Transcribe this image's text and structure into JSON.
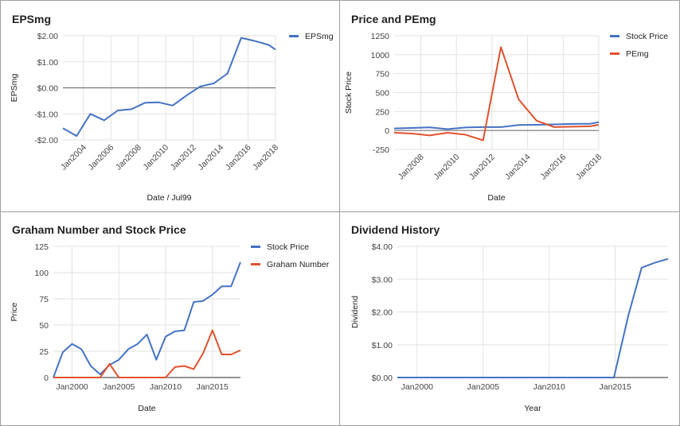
{
  "chart_data": [
    {
      "type": "line",
      "title": "EPSmg",
      "xlabel": "Date / Jul99",
      "ylabel": "EPSmg",
      "x_ticks": [
        "Jan2004",
        "Jan2006",
        "Jan2008",
        "Jan2010",
        "Jan2012",
        "Jan2014",
        "Jan2016",
        "Jan2018"
      ],
      "y_ticks": [
        "$2.00",
        "$1.00",
        "$0.00",
        "-$1.00",
        "-$2.00"
      ],
      "ylim": [
        -2,
        2
      ],
      "xlim": [
        2002.5,
        2018
      ],
      "grid": true,
      "legend_position": "right",
      "colors": {
        "EPSmg": "#4472c4",
        "baseline": "#777777"
      },
      "series": [
        {
          "name": "EPSmg",
          "x": [
            2002.5,
            2003.5,
            2004.5,
            2005.5,
            2006.5,
            2007.5,
            2008.5,
            2009.5,
            2010.5,
            2011.5,
            2012.5,
            2013.5,
            2014.5,
            2015.5,
            2016.5,
            2017.5,
            2018
          ],
          "values": [
            -1.55,
            -1.85,
            -1.0,
            -1.25,
            -0.87,
            -0.82,
            -0.57,
            -0.56,
            -0.68,
            -0.3,
            0.05,
            0.17,
            0.55,
            1.92,
            1.8,
            1.65,
            1.47
          ]
        }
      ]
    },
    {
      "type": "line",
      "title": "Price and PEmg",
      "xlabel": "Date",
      "ylabel": "Stock Price",
      "x_ticks": [
        "Jan2008",
        "Jan2010",
        "Jan2012",
        "Jan2014",
        "Jan2016",
        "Jan2018"
      ],
      "y_ticks": [
        "1250",
        "1000",
        "750",
        "500",
        "250",
        "0",
        "-250"
      ],
      "ylim": [
        -250,
        1250
      ],
      "xlim": [
        2006.5,
        2018
      ],
      "grid": true,
      "legend_position": "right",
      "colors": {
        "Stock Price": "#4472c4",
        "PEmg": "#e0522d"
      },
      "series": [
        {
          "name": "Stock Price",
          "x": [
            2006.5,
            2007.5,
            2008.5,
            2009.5,
            2010.5,
            2011.5,
            2012.5,
            2013.5,
            2014.5,
            2015.5,
            2016.5,
            2017.5,
            2018
          ],
          "values": [
            27,
            33,
            42,
            17,
            40,
            45,
            45,
            72,
            75,
            80,
            87,
            88,
            110
          ]
        },
        {
          "name": "PEmg",
          "x": [
            2006.5,
            2007.5,
            2008.5,
            2009.5,
            2010.5,
            2011.5,
            2012.5,
            2013.5,
            2014.5,
            2015.5,
            2016.5,
            2017.5,
            2018
          ],
          "values": [
            -30,
            -40,
            -65,
            -30,
            -55,
            -130,
            1100,
            410,
            130,
            45,
            50,
            55,
            75
          ]
        }
      ]
    },
    {
      "type": "line",
      "title": "Graham Number and Stock Price",
      "xlabel": "Date",
      "ylabel": "Price",
      "x_ticks": [
        "Jan2000",
        "Jan2005",
        "Jan2010",
        "Jan2015"
      ],
      "y_ticks": [
        "125",
        "100",
        "75",
        "50",
        "25",
        "0"
      ],
      "ylim": [
        0,
        125
      ],
      "xlim": [
        1998,
        2018
      ],
      "grid": true,
      "legend_position": "right",
      "colors": {
        "Stock Price": "#4472c4",
        "Graham Number": "#e0522d"
      },
      "series": [
        {
          "name": "Stock Price",
          "x": [
            1998,
            1999,
            2000,
            2001,
            2002,
            2003,
            2004,
            2005,
            2006,
            2007,
            2008,
            2009,
            2010,
            2011,
            2012,
            2013,
            2014,
            2015,
            2016,
            2017,
            2018
          ],
          "values": [
            0,
            24,
            32,
            27,
            11,
            3,
            12,
            17,
            27,
            32,
            41,
            17,
            39,
            44,
            45,
            72,
            73,
            79,
            87,
            87,
            110
          ]
        },
        {
          "name": "Graham Number",
          "x": [
            1998,
            1999,
            2000,
            2001,
            2002,
            2003,
            2004,
            2005,
            2006,
            2007,
            2008,
            2009,
            2010,
            2011,
            2012,
            2013,
            2014,
            2015,
            2016,
            2017,
            2018
          ],
          "values": [
            0,
            0,
            0,
            0,
            0,
            0,
            13,
            0,
            0,
            0,
            0,
            0,
            0,
            10,
            11,
            8,
            23,
            45,
            22,
            22,
            26
          ]
        }
      ]
    },
    {
      "type": "line",
      "title": "Dividend History",
      "xlabel": "Year",
      "ylabel": "Dividend",
      "x_ticks": [
        "Jan2000",
        "Jan2005",
        "Jan2010",
        "Jan2015"
      ],
      "y_ticks": [
        "$4.00",
        "$3.00",
        "$2.00",
        "$1.00",
        "$0.00"
      ],
      "ylim": [
        0,
        4
      ],
      "xlim": [
        1998.5,
        2019
      ],
      "grid": true,
      "colors": {
        "Dividend": "#4472c4"
      },
      "series": [
        {
          "x": [
            1998.5,
            2000,
            2005,
            2010,
            2014.9,
            2016,
            2017,
            2018,
            2019
          ],
          "values": [
            0,
            0,
            0,
            0,
            0,
            1.9,
            3.35,
            3.5,
            3.62
          ]
        }
      ]
    }
  ]
}
